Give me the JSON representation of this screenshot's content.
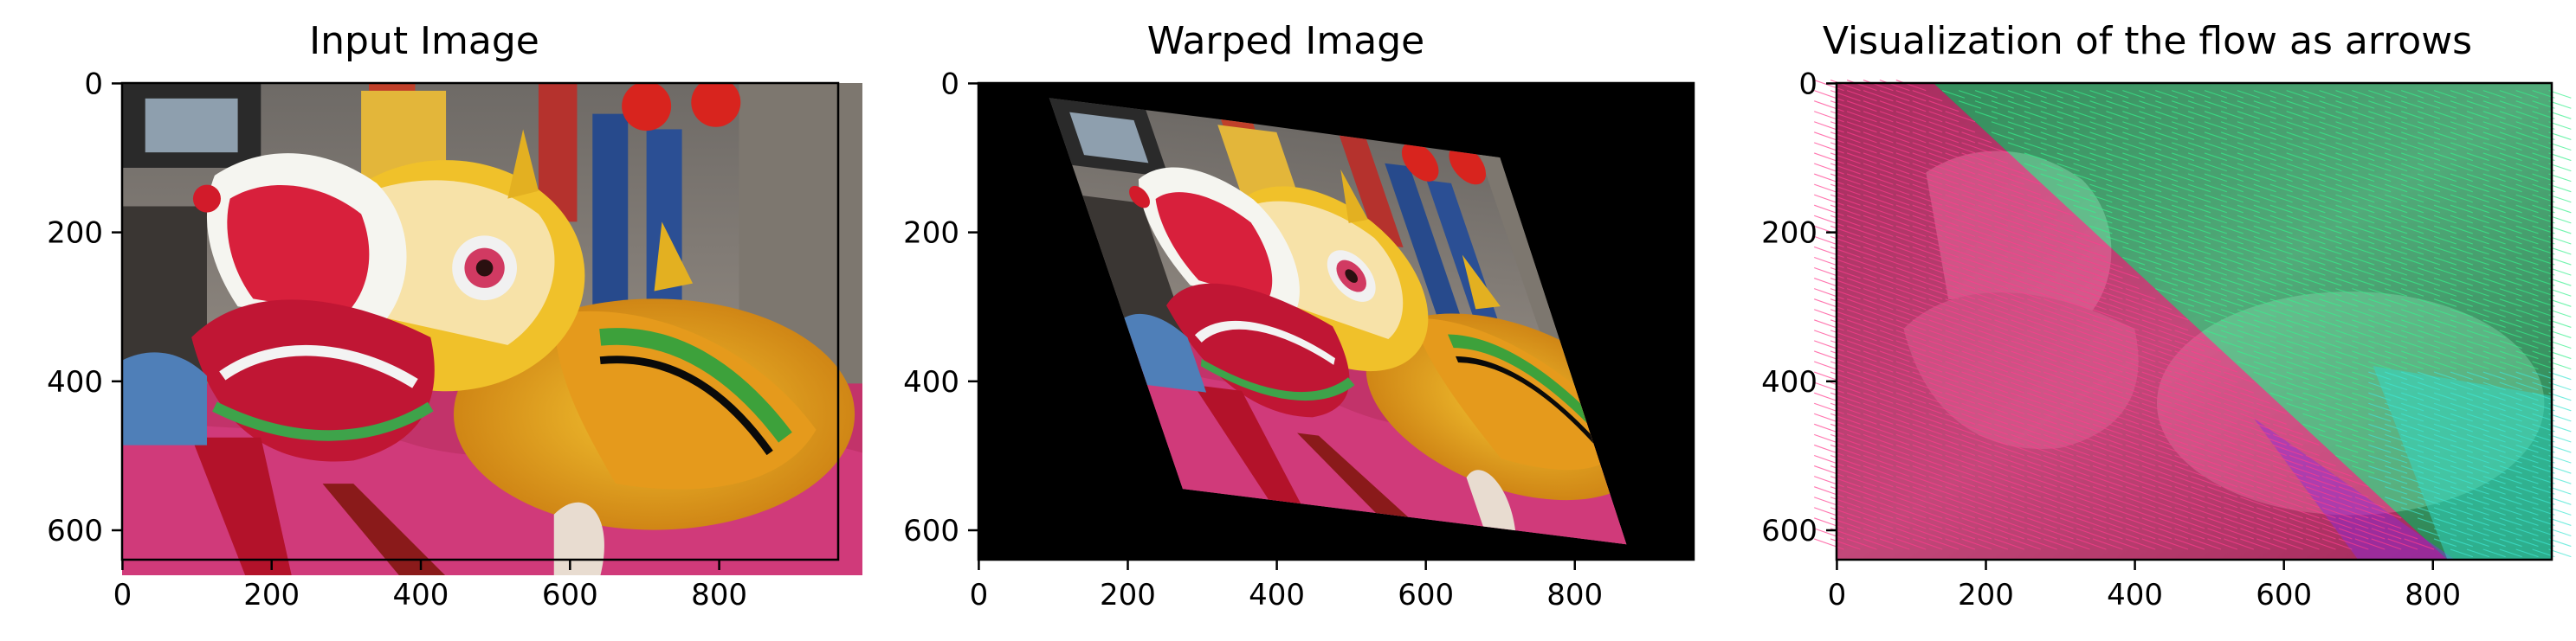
{
  "chart_data": [
    {
      "type": "image",
      "title": "Input Image",
      "xlim": [
        0,
        959
      ],
      "ylim": [
        639,
        0
      ],
      "xticks": [
        "0",
        "200",
        "400",
        "600",
        "800"
      ],
      "yticks": [
        "0",
        "200",
        "400",
        "600"
      ],
      "content": "photo of a colourful Chinese dragon costume"
    },
    {
      "type": "image",
      "title": "Warped Image",
      "xlim": [
        0,
        959
      ],
      "ylim": [
        639,
        0
      ],
      "xticks": [
        "0",
        "200",
        "400",
        "600",
        "800"
      ],
      "yticks": [
        "0",
        "200",
        "400",
        "600"
      ],
      "content": "same photo after an affine warp on a black background"
    },
    {
      "type": "image",
      "title": "Visualization of the flow as arrows",
      "xlim": [
        0,
        959
      ],
      "ylim": [
        639,
        0
      ],
      "xticks": [
        "0",
        "200",
        "400",
        "600",
        "800"
      ],
      "yticks": [
        "0",
        "200",
        "400",
        "600"
      ],
      "content": "grayscale photo overlaid with dense flow arrows; pink/magenta arrows lower-left, green/cyan arrows upper-right",
      "colors": {
        "pink": "#ff1f7a",
        "green": "#22e67a",
        "cyan": "#2fd9c8",
        "purple": "#8a2be2"
      }
    }
  ]
}
